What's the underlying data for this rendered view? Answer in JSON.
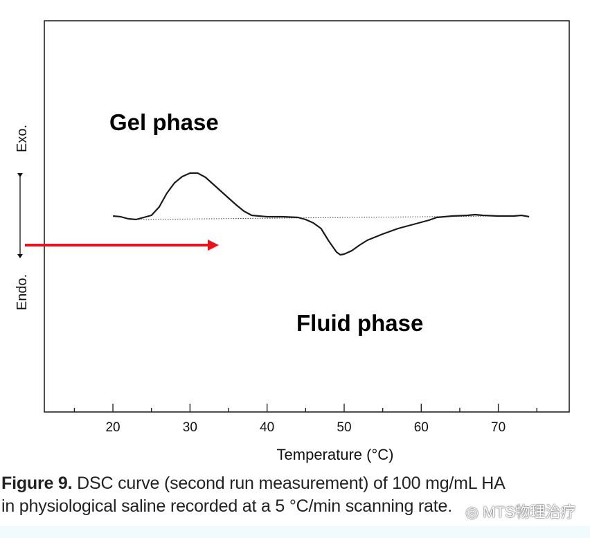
{
  "chart_data": {
    "type": "line",
    "title": "",
    "xlabel": "Temperature (°C)",
    "ylabel_top": "Exo.",
    "ylabel_bottom": "Endo.",
    "xlim": [
      11.1,
      79.2
    ],
    "ylim": [
      -28.1,
      28.4
    ],
    "x_ticks": [
      20,
      30,
      40,
      50,
      60,
      70
    ],
    "x_minor_ticks": [
      15,
      25,
      35,
      45,
      55,
      65,
      75
    ],
    "grid": false,
    "series": [
      {
        "name": "DSC curve",
        "x": [
          20,
          21,
          22,
          23,
          24,
          25,
          26,
          27,
          28,
          29,
          30,
          31,
          32,
          33,
          34,
          35,
          36,
          37,
          38,
          39,
          40,
          42,
          44,
          45,
          46,
          47,
          48,
          49,
          49.5,
          50,
          51,
          52,
          53,
          55,
          57,
          59,
          61,
          62,
          64,
          66,
          67,
          68,
          70,
          72,
          73,
          74
        ],
        "y": [
          0.2,
          0.1,
          -0.2,
          -0.3,
          0,
          0.3,
          1.5,
          3.5,
          5.0,
          5.9,
          6.4,
          6.4,
          5.8,
          4.8,
          3.8,
          2.8,
          1.8,
          0.9,
          0.3,
          0.2,
          0.1,
          0.1,
          0,
          -0.3,
          -0.8,
          -1.6,
          -3.4,
          -5.0,
          -5.4,
          -5.3,
          -4.8,
          -4.0,
          -3.3,
          -2.4,
          -1.6,
          -1.0,
          -0.4,
          0,
          0.2,
          0.3,
          0.4,
          0.3,
          0.2,
          0.2,
          0.3,
          0.1
        ]
      },
      {
        "name": "baseline",
        "style": "dotted",
        "x": [
          23,
          70
        ],
        "y": [
          -0.3,
          0.2
        ]
      }
    ],
    "annotations": {
      "gel": "Gel phase",
      "fluid": "Fluid phase"
    },
    "arrow_color": "#e8141b"
  },
  "caption": {
    "label": "Figure 9.",
    "line1": " DSC curve (second run measurement) of 100 mg/mL HA",
    "line2": "in physiological saline recorded at a 5 °C/min scanning rate."
  },
  "watermark": "MTS物理治疗"
}
